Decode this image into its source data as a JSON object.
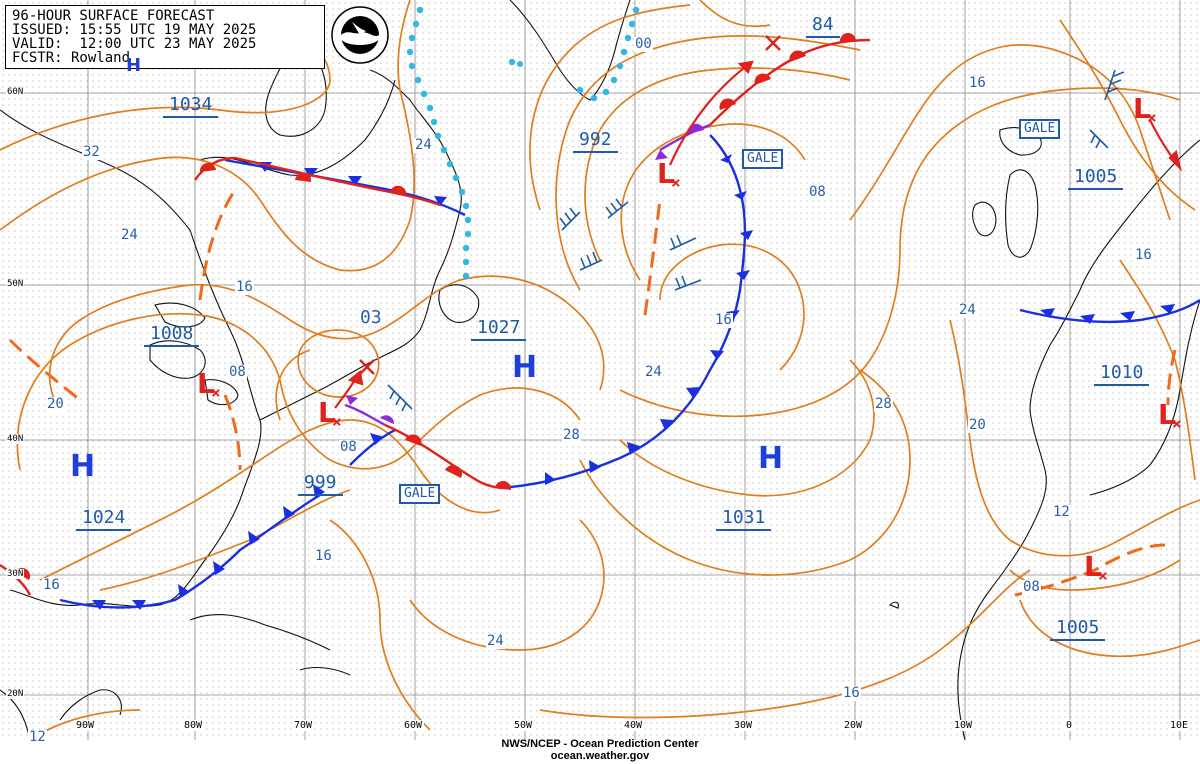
{
  "header": {
    "line1": "96-HOUR SURFACE FORECAST",
    "line2": "ISSUED: 15:55 UTC 19 MAY 2025",
    "line3": "VALID:  12:00 UTC 23 MAY 2025",
    "line4": "FCSTR: Rowland",
    "logo_text": "NOAA"
  },
  "footer": {
    "line1": "NWS/NCEP - Ocean Prediction Center",
    "line2": "ocean.weather.gov"
  },
  "latitude_labels": [
    "60N",
    "50N",
    "40N",
    "30N",
    "20N"
  ],
  "longitude_labels": [
    "90W",
    "80W",
    "70W",
    "60W",
    "50W",
    "40W",
    "30W",
    "20W",
    "10W",
    "0",
    "10E"
  ],
  "isobar_labels": [
    "32",
    "24",
    "16",
    "20",
    "08",
    "03",
    "24",
    "00",
    "16",
    "08",
    "16",
    "24",
    "24",
    "28",
    "28",
    "16",
    "24",
    "20",
    "12",
    "08",
    "16",
    "16",
    "12",
    "08",
    "16"
  ],
  "pressure_centers": [
    {
      "value": "1034"
    },
    {
      "value": "992"
    },
    {
      "value": "84"
    },
    {
      "value": "1005"
    },
    {
      "value": "1008"
    },
    {
      "value": "1027"
    },
    {
      "value": "999"
    },
    {
      "value": "1024"
    },
    {
      "value": "1031"
    },
    {
      "value": "1010"
    },
    {
      "value": "1005"
    }
  ],
  "highs": [
    "H",
    "H",
    "H",
    "H"
  ],
  "lows": [
    "L",
    "L",
    "L",
    "L",
    "L",
    "L"
  ],
  "warnings": [
    "GALE",
    "GALE",
    "GALE"
  ],
  "colors": {
    "isobar": "#e07d1c",
    "cold_front": "#1a2fe0",
    "warm_front": "#e0221c",
    "occluded": "#8e2bd6",
    "trough": "#f06a1c",
    "ice_edge": "#33b5e8",
    "land": "#000000",
    "label": "#1f5aa8"
  }
}
